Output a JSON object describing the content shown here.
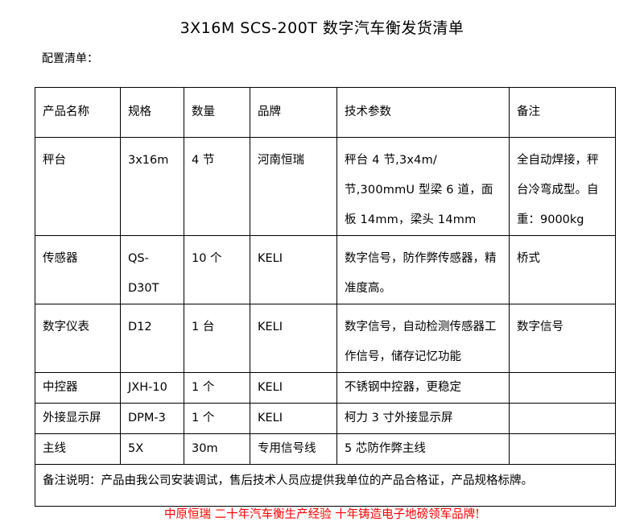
{
  "title": "3X16M SCS-200T 数字汽车衡发货清单",
  "subtitle": "配置清单：",
  "table": {
    "headers": [
      "产品名称",
      "规格",
      "数量",
      "品牌",
      "技术参数",
      "备注"
    ],
    "rows": [
      [
        "秤台",
        "3x16m",
        "4 节",
        "河南恒瑞",
        "秤台 4 节,3x4m/节,300mmU 型梁 6 道，面板 14mm，梁头 14mm",
        "全自动焊接，秤台冷弯成型。自重：9000kg"
      ],
      [
        "传感器",
        "QS-D30T",
        "10 个",
        "KELI",
        "数字信号，防作弊传感器，精准度高。",
        "桥式"
      ],
      [
        "数字仪表",
        "D12",
        "1 台",
        "KELI",
        "数字信号，自动检测传感器工作信号，储存记忆功能",
        "数字信号"
      ],
      [
        "中控器",
        "JXH-10",
        "1 个",
        "KELI",
        "不锈钢中控器，更稳定",
        ""
      ],
      [
        "外接显示屏",
        "DPM-3",
        "1 个",
        "KELI",
        "柯力 3 寸外接显示屏",
        ""
      ],
      [
        "主线",
        "5X",
        "30m",
        "专用信号线",
        "5 芯防作弊主线",
        ""
      ]
    ],
    "note": "备注说明：产品由我公司安装调试，售后技术人员应提供我单位的产品合格证，产品规格标牌。"
  },
  "slogan": "中原恒瑞 二十年汽车衡生产经验 十年铸造电子地磅领军品牌!",
  "colors": {
    "slogan": "#ff0000"
  }
}
